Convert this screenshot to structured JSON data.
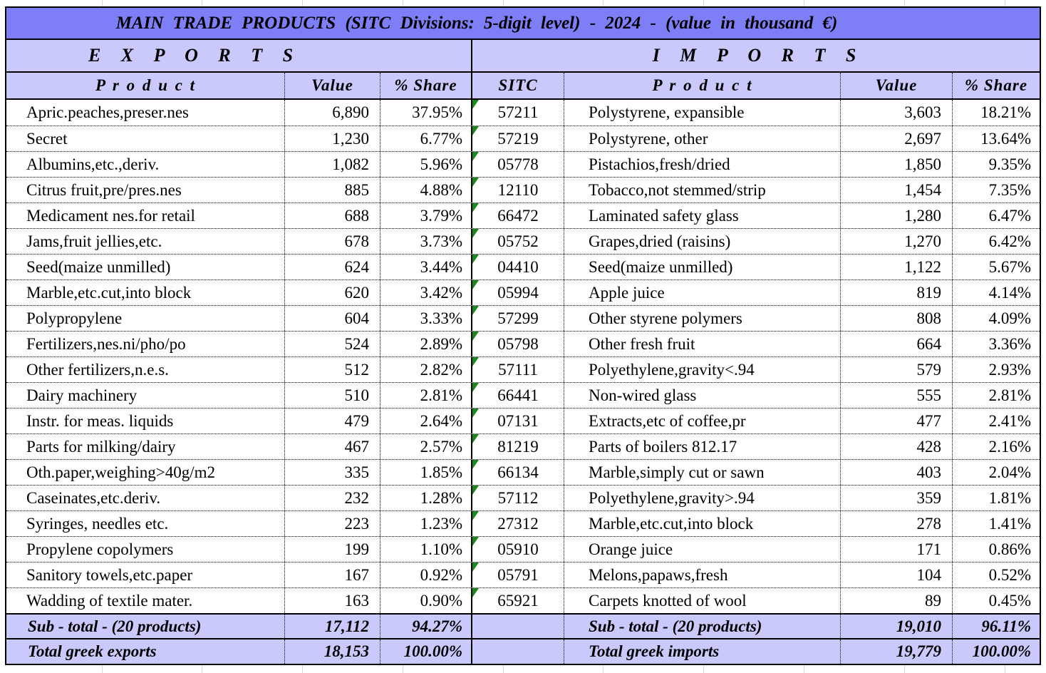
{
  "title": "MAIN  TRADE  PRODUCTS  (SITC Divisions: 5-digit level)  - 2024 -  (value in thousand €)",
  "colors": {
    "title_bg": "#7e7ef6",
    "header_bg": "#c9c9fb",
    "error_indicator_green": "#1a8a1a",
    "border": "#000000"
  },
  "icons": {
    "cell_error_indicator": "green-corner-triangle"
  },
  "exports": {
    "section_label": "E X P O R T S",
    "headers": {
      "product": "P r o d u c t",
      "value": "Value",
      "share": "% Share"
    },
    "rows": [
      {
        "product": "Apric.peaches,preser.nes",
        "value": "6,890",
        "share": "37.95%"
      },
      {
        "product": "Secret",
        "value": "1,230",
        "share": "6.77%"
      },
      {
        "product": "Albumins,etc.,deriv.",
        "value": "1,082",
        "share": "5.96%"
      },
      {
        "product": "Citrus fruit,pre/pres.nes",
        "value": "885",
        "share": "4.88%"
      },
      {
        "product": "Medicament nes.for retail",
        "value": "688",
        "share": "3.79%"
      },
      {
        "product": "Jams,fruit jellies,etc.",
        "value": "678",
        "share": "3.73%"
      },
      {
        "product": "Seed(maize unmilled)",
        "value": "624",
        "share": "3.44%"
      },
      {
        "product": "Marble,etc.cut,into block",
        "value": "620",
        "share": "3.42%"
      },
      {
        "product": "Polypropylene",
        "value": "604",
        "share": "3.33%"
      },
      {
        "product": "Fertilizers,nes.ni/pho/po",
        "value": "524",
        "share": "2.89%"
      },
      {
        "product": "Other fertilizers,n.e.s.",
        "value": "512",
        "share": "2.82%"
      },
      {
        "product": "Dairy machinery",
        "value": "510",
        "share": "2.81%"
      },
      {
        "product": "Instr. for meas. liquids",
        "value": "479",
        "share": "2.64%"
      },
      {
        "product": "Parts for milking/dairy",
        "value": "467",
        "share": "2.57%"
      },
      {
        "product": "Oth.paper,weighing>40g/m2",
        "value": "335",
        "share": "1.85%"
      },
      {
        "product": "Caseinates,etc.deriv.",
        "value": "232",
        "share": "1.28%"
      },
      {
        "product": "Syringes, needles etc.",
        "value": "223",
        "share": "1.23%"
      },
      {
        "product": "Propylene copolymers",
        "value": "199",
        "share": "1.10%"
      },
      {
        "product": "Sanitory towels,etc.paper",
        "value": "167",
        "share": "0.92%"
      },
      {
        "product": "Wadding of textile mater.",
        "value": "163",
        "share": "0.90%"
      }
    ],
    "subtotal": {
      "label": "Sub - total - (20 products)",
      "value": "17,112",
      "share": "94.27%"
    },
    "total": {
      "label": "Total greek exports",
      "value": "18,153",
      "share": "100.00%"
    }
  },
  "imports": {
    "section_label": "I M P O R T S",
    "headers": {
      "sitc": "SITC",
      "product": "P r o d u c t",
      "value": "Value",
      "share": "% Share"
    },
    "rows": [
      {
        "sitc": "57211",
        "product": "Polystyrene, expansible",
        "value": "3,603",
        "share": "18.21%"
      },
      {
        "sitc": "57219",
        "product": "Polystyrene, other",
        "value": "2,697",
        "share": "13.64%"
      },
      {
        "sitc": "05778",
        "product": "Pistachios,fresh/dried",
        "value": "1,850",
        "share": "9.35%"
      },
      {
        "sitc": "12110",
        "product": "Tobacco,not stemmed/strip",
        "value": "1,454",
        "share": "7.35%"
      },
      {
        "sitc": "66472",
        "product": "Laminated safety glass",
        "value": "1,280",
        "share": "6.47%"
      },
      {
        "sitc": "05752",
        "product": "Grapes,dried (raisins)",
        "value": "1,270",
        "share": "6.42%"
      },
      {
        "sitc": "04410",
        "product": "Seed(maize unmilled)",
        "value": "1,122",
        "share": "5.67%"
      },
      {
        "sitc": "05994",
        "product": "Apple juice",
        "value": "819",
        "share": "4.14%"
      },
      {
        "sitc": "57299",
        "product": "Other styrene polymers",
        "value": "808",
        "share": "4.09%"
      },
      {
        "sitc": "05798",
        "product": "Other fresh fruit",
        "value": "664",
        "share": "3.36%"
      },
      {
        "sitc": "57111",
        "product": "Polyethylene,gravity<.94",
        "value": "579",
        "share": "2.93%"
      },
      {
        "sitc": "66441",
        "product": "Non-wired glass",
        "value": "555",
        "share": "2.81%"
      },
      {
        "sitc": "07131",
        "product": "Extracts,etc of coffee,pr",
        "value": "477",
        "share": "2.41%"
      },
      {
        "sitc": "81219",
        "product": "Parts of boilers 812.17",
        "value": "428",
        "share": "2.16%"
      },
      {
        "sitc": "66134",
        "product": "Marble,simply cut or sawn",
        "value": "403",
        "share": "2.04%"
      },
      {
        "sitc": "57112",
        "product": "Polyethylene,gravity>.94",
        "value": "359",
        "share": "1.81%"
      },
      {
        "sitc": "27312",
        "product": "Marble,etc.cut,into block",
        "value": "278",
        "share": "1.41%"
      },
      {
        "sitc": "05910",
        "product": "Orange juice",
        "value": "171",
        "share": "0.86%"
      },
      {
        "sitc": "05791",
        "product": "Melons,papaws,fresh",
        "value": "104",
        "share": "0.52%"
      },
      {
        "sitc": "65921",
        "product": "Carpets knotted of wool",
        "value": "89",
        "share": "0.45%"
      }
    ],
    "subtotal": {
      "label": "Sub - total - (20 products)",
      "value": "19,010",
      "share": "96.11%"
    },
    "total": {
      "label": "Total greek imports",
      "value": "19,779",
      "share": "100.00%"
    }
  }
}
